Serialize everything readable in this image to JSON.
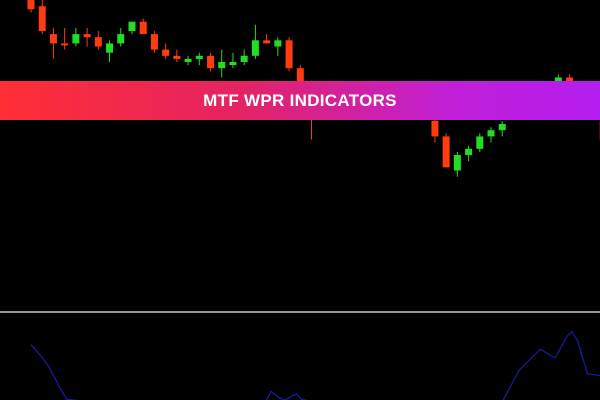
{
  "banner": {
    "title": "MTF WPR INDICATORS"
  },
  "colors": {
    "background": "#000000",
    "bull_candle": "#22dd22",
    "bear_candle": "#ff3b0f",
    "separator": "#c8c8c8",
    "indicator_line": "#1a1aa8",
    "banner_gradient_start": "#ff2f34",
    "banner_gradient_end": "#b51ef0"
  },
  "chart_data": [
    {
      "type": "candlestick",
      "title": "",
      "xlabel": "",
      "ylabel": "",
      "ylim": [
        0,
        100
      ],
      "candles": [
        {
          "i": 0,
          "o": 100,
          "h": 101,
          "l": 96,
          "c": 97,
          "dir": "bear"
        },
        {
          "i": 1,
          "o": 98,
          "h": 100,
          "l": 89,
          "c": 90,
          "dir": "bear"
        },
        {
          "i": 2,
          "o": 89,
          "h": 91,
          "l": 81,
          "c": 86,
          "dir": "bear"
        },
        {
          "i": 3,
          "o": 86,
          "h": 91,
          "l": 84,
          "c": 86,
          "dir": "bear"
        },
        {
          "i": 4,
          "o": 86,
          "h": 91,
          "l": 85,
          "c": 89,
          "dir": "bull"
        },
        {
          "i": 5,
          "o": 89,
          "h": 91,
          "l": 85,
          "c": 88,
          "dir": "bear"
        },
        {
          "i": 6,
          "o": 88,
          "h": 90,
          "l": 84,
          "c": 85,
          "dir": "bear"
        },
        {
          "i": 7,
          "o": 83,
          "h": 87,
          "l": 80,
          "c": 86,
          "dir": "bull"
        },
        {
          "i": 8,
          "o": 86,
          "h": 91,
          "l": 85,
          "c": 89,
          "dir": "bull"
        },
        {
          "i": 9,
          "o": 90,
          "h": 93,
          "l": 89,
          "c": 93,
          "dir": "bull"
        },
        {
          "i": 10,
          "o": 93,
          "h": 94,
          "l": 89,
          "c": 89,
          "dir": "bear"
        },
        {
          "i": 11,
          "o": 89,
          "h": 90,
          "l": 83,
          "c": 84,
          "dir": "bear"
        },
        {
          "i": 12,
          "o": 84,
          "h": 86,
          "l": 81,
          "c": 82,
          "dir": "bear"
        },
        {
          "i": 13,
          "o": 82,
          "h": 84,
          "l": 80,
          "c": 81,
          "dir": "bear"
        },
        {
          "i": 14,
          "o": 80,
          "h": 82,
          "l": 79,
          "c": 81,
          "dir": "bull"
        },
        {
          "i": 15,
          "o": 81,
          "h": 83,
          "l": 79,
          "c": 82,
          "dir": "bull"
        },
        {
          "i": 16,
          "o": 82,
          "h": 83,
          "l": 77,
          "c": 78,
          "dir": "bear"
        },
        {
          "i": 17,
          "o": 78,
          "h": 84,
          "l": 75,
          "c": 80,
          "dir": "bull"
        },
        {
          "i": 18,
          "o": 79,
          "h": 83,
          "l": 78,
          "c": 80,
          "dir": "bull"
        },
        {
          "i": 19,
          "o": 80,
          "h": 84,
          "l": 79,
          "c": 82,
          "dir": "bull"
        },
        {
          "i": 20,
          "o": 82,
          "h": 92,
          "l": 81,
          "c": 87,
          "dir": "bull"
        },
        {
          "i": 21,
          "o": 87,
          "h": 89,
          "l": 86,
          "c": 86,
          "dir": "bear"
        },
        {
          "i": 22,
          "o": 85,
          "h": 88,
          "l": 82,
          "c": 87,
          "dir": "bull"
        },
        {
          "i": 23,
          "o": 87,
          "h": 88,
          "l": 77,
          "c": 78,
          "dir": "bear"
        },
        {
          "i": 24,
          "o": 78,
          "h": 79,
          "l": 71,
          "c": 72,
          "dir": "bear"
        },
        {
          "i": 25,
          "o": 72,
          "h": 74,
          "l": 55,
          "c": 64,
          "dir": "bear"
        },
        {
          "i": 36,
          "o": 61,
          "h": 63,
          "l": 54,
          "c": 56,
          "dir": "bear"
        },
        {
          "i": 37,
          "o": 56,
          "h": 57,
          "l": 46,
          "c": 46,
          "dir": "bear"
        },
        {
          "i": 38,
          "o": 45,
          "h": 51,
          "l": 43,
          "c": 50,
          "dir": "bull"
        },
        {
          "i": 39,
          "o": 50,
          "h": 53,
          "l": 48,
          "c": 52,
          "dir": "bull"
        },
        {
          "i": 40,
          "o": 52,
          "h": 57,
          "l": 51,
          "c": 56,
          "dir": "bull"
        },
        {
          "i": 41,
          "o": 56,
          "h": 59,
          "l": 54,
          "c": 58,
          "dir": "bull"
        },
        {
          "i": 42,
          "o": 58,
          "h": 61,
          "l": 56,
          "c": 60,
          "dir": "bull"
        },
        {
          "i": 47,
          "o": 73,
          "h": 76,
          "l": 72,
          "c": 75,
          "dir": "bull"
        },
        {
          "i": 48,
          "o": 75,
          "h": 76,
          "l": 72,
          "c": 73,
          "dir": "bear"
        },
        {
          "i": 51,
          "o": 61,
          "h": 63,
          "l": 54,
          "c": 55,
          "dir": "bear"
        },
        {
          "i": 52,
          "o": 55,
          "h": 62,
          "l": 53,
          "c": 59,
          "dir": "bull"
        },
        {
          "i": 53,
          "o": 59,
          "h": 61,
          "l": 48,
          "c": 49,
          "dir": "bear"
        }
      ]
    },
    {
      "type": "line",
      "title": "",
      "xlabel": "",
      "ylabel": "",
      "ylim": [
        -100,
        0
      ],
      "series": [
        {
          "x": [
            0,
            0.9,
            1.5,
            2.1,
            2.6,
            3.2,
            5.7,
            20.9,
            21.4,
            22.1,
            22.6,
            23.3,
            23.7,
            24.1,
            25.4,
            42.0,
            43.5,
            44.6,
            45.4,
            46.7,
            47.8,
            48.2,
            48.7,
            49.6,
            50.8,
            51.3,
            51.8
          ],
          "values": [
            -35,
            -48,
            -58,
            -72,
            -85,
            -97,
            -100,
            -100,
            -88,
            -95,
            -98,
            -93,
            -91,
            -97,
            -100,
            -100,
            -64,
            -50,
            -40,
            -50,
            -25,
            -20,
            -30,
            -68,
            -70,
            -79,
            -100
          ]
        }
      ]
    }
  ]
}
